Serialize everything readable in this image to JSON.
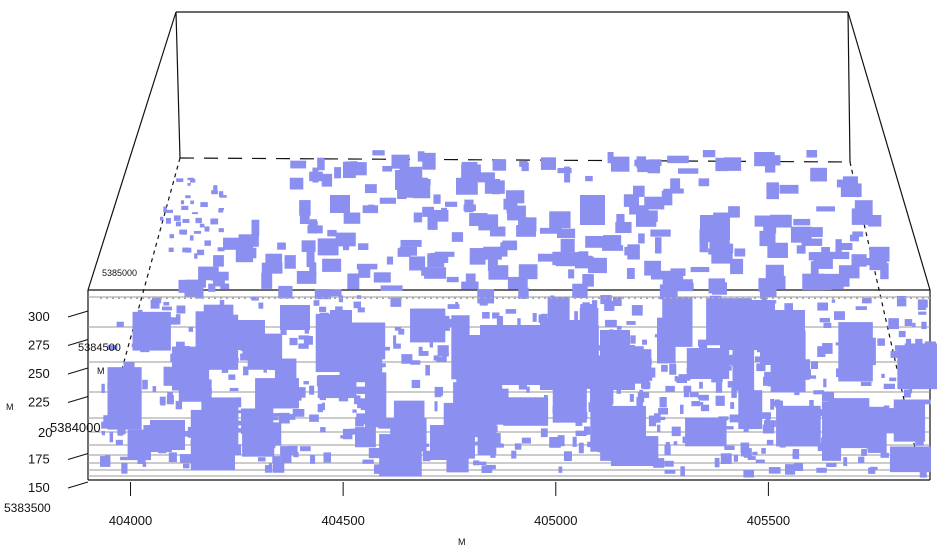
{
  "chart_data": {
    "type": "other",
    "x_axis": {
      "label": "M",
      "ticks": [
        "404000",
        "404500",
        "405000",
        "405500"
      ]
    },
    "y_axis": {
      "label": "M",
      "ticks": [
        "5383500",
        "5384000",
        "5384500",
        "5385000"
      ]
    },
    "z_axis": {
      "label": "M",
      "ticks": [
        "150",
        "175",
        "200",
        "225",
        "250",
        "275",
        "300"
      ]
    },
    "y_tick_partial": "20",
    "colors": {
      "buildings": "#8a8ff0",
      "box": "#111111",
      "grid": "#888888"
    }
  }
}
